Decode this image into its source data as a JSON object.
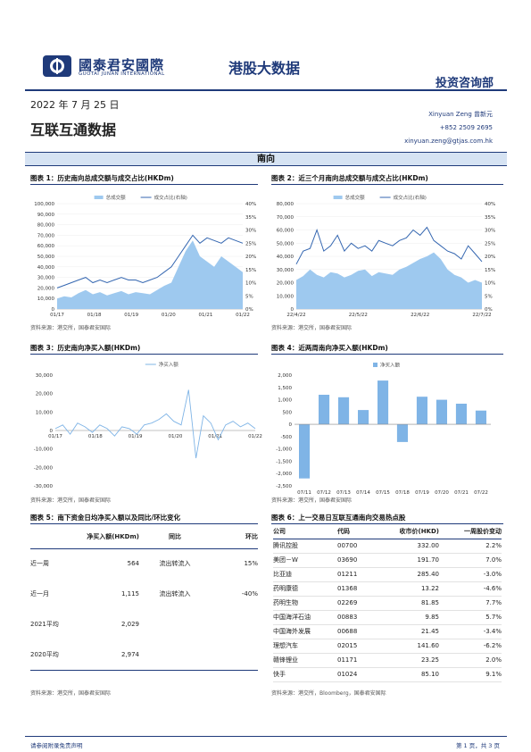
{
  "header": {
    "logo_cn": "國泰君安國際",
    "logo_en": "GUOTAI JUNAN INTERNATIONAL",
    "title": "港股大数据",
    "department": "投资咨询部",
    "brand_color": "#1f3a7a"
  },
  "report": {
    "date": "2022 年 7 月 25 日",
    "title": "互联互通数据"
  },
  "analyst": {
    "name": "Xinyuan Zeng  曾新元",
    "phone": "+852 2509 2695",
    "email": "xinyuan.zeng@gtjas.com.hk"
  },
  "section": "南向",
  "fig1": {
    "title": "图表 1：历史南向总成交额与成交占比(HKDm)",
    "source": "资料来源：港交所，国泰君安国际",
    "chart_data": {
      "type": "area",
      "legend": [
        "总成交额",
        "成交占比(右轴)"
      ],
      "x_ticks": [
        "01/17",
        "01/18",
        "01/19",
        "01/20",
        "01/21",
        "01/22"
      ],
      "y_left_ticks": [
        "0",
        "10,000",
        "20,000",
        "30,000",
        "40,000",
        "50,000",
        "60,000",
        "70,000",
        "80,000",
        "90,000",
        "100,000"
      ],
      "y_right_ticks": [
        "0%",
        "5%",
        "10%",
        "15%",
        "20%",
        "25%",
        "30%",
        "35%",
        "40%"
      ],
      "ylim_left": [
        0,
        100000
      ],
      "ylim_right": [
        0,
        40
      ],
      "series": [
        {
          "name": "总成交额",
          "axis": "left",
          "values": [
            10000,
            12000,
            11000,
            15000,
            18000,
            14000,
            16000,
            13000,
            15000,
            17000,
            14000,
            16000,
            15000,
            14000,
            18000,
            22000,
            25000,
            40000,
            55000,
            65000,
            50000,
            45000,
            40000,
            50000,
            45000,
            40000,
            35000
          ]
        },
        {
          "name": "成交占比(右轴)",
          "axis": "right",
          "values": [
            8,
            9,
            10,
            11,
            12,
            10,
            11,
            10,
            11,
            12,
            11,
            11,
            10,
            11,
            12,
            14,
            16,
            20,
            24,
            28,
            25,
            27,
            26,
            25,
            27,
            26,
            25
          ]
        }
      ]
    }
  },
  "fig2": {
    "title": "图表 2：近三个月南向总成交额与成交占比(HKDm)",
    "source": "资料来源：港交所，国泰君安国际",
    "chart_data": {
      "type": "area",
      "legend": [
        "总成交额",
        "成交占比(右轴)"
      ],
      "x_ticks": [
        "22/4/22",
        "22/5/22",
        "22/6/22",
        "22/7/22"
      ],
      "y_left_ticks": [
        "0",
        "10,000",
        "20,000",
        "30,000",
        "40,000",
        "50,000",
        "60,000",
        "70,000",
        "80,000"
      ],
      "y_right_ticks": [
        "0%",
        "5%",
        "10%",
        "15%",
        "20%",
        "25%",
        "30%",
        "35%",
        "40%"
      ],
      "ylim_left": [
        0,
        80000
      ],
      "ylim_right": [
        0,
        40
      ],
      "series": [
        {
          "name": "总成交额",
          "axis": "left",
          "values": [
            22000,
            25000,
            30000,
            26000,
            24000,
            28000,
            27000,
            24000,
            26000,
            29000,
            30000,
            25000,
            28000,
            27000,
            26000,
            30000,
            32000,
            35000,
            38000,
            40000,
            43000,
            38000,
            30000,
            26000,
            24000,
            20000,
            22000,
            20000
          ]
        },
        {
          "name": "成交占比(右轴)",
          "axis": "right",
          "values": [
            17,
            22,
            23,
            30,
            22,
            24,
            28,
            22,
            25,
            23,
            24,
            22,
            26,
            25,
            24,
            26,
            27,
            30,
            28,
            31,
            26,
            24,
            22,
            21,
            19,
            24,
            21,
            18
          ]
        }
      ]
    }
  },
  "fig3": {
    "title": "图表 3：历史南向净买入额(HKDm)",
    "source": "资料来源：港交所，国泰君安国际",
    "chart_data": {
      "type": "line",
      "legend": [
        "净买入额"
      ],
      "x_ticks": [
        "01/17",
        "01/18",
        "01/19",
        "01/20",
        "01/21",
        "01/22"
      ],
      "y_ticks": [
        "-30,000",
        "-20,000",
        "-10,000",
        "0",
        "10,000",
        "20,000",
        "30,000"
      ],
      "ylim": [
        -30000,
        30000
      ],
      "series": [
        {
          "name": "净买入额",
          "values": [
            1000,
            3000,
            -2000,
            4000,
            2000,
            -1000,
            3000,
            1000,
            -3000,
            2000,
            1000,
            -2000,
            3000,
            4000,
            6000,
            9000,
            5000,
            3000,
            22000,
            -15000,
            8000,
            4000,
            -5000,
            3000,
            5000,
            2000,
            4000,
            1000
          ]
        }
      ]
    }
  },
  "fig4": {
    "title": "图表 4：近两周南向净买入额(HKDm)",
    "source": "资料来源：港交所，国泰君安国际",
    "chart_data": {
      "type": "bar",
      "legend": [
        "净买入额"
      ],
      "categories": [
        "07/11",
        "07/12",
        "07/13",
        "07/14",
        "07/15",
        "07/18",
        "07/19",
        "07/20",
        "07/21",
        "07/22"
      ],
      "values": [
        -2200,
        1200,
        1100,
        580,
        1780,
        -720,
        1120,
        1000,
        840,
        560
      ],
      "y_ticks": [
        "-2,500",
        "-2,000",
        "-1,500",
        "-1,000",
        "-500",
        "0",
        "500",
        "1,000",
        "1,500",
        "2,000"
      ],
      "ylim": [
        -2500,
        2000
      ]
    }
  },
  "fig5": {
    "title": "图表 5：南下资金日均净买入额以及同比/环比变化",
    "source": "资料来源：港交所，国泰君安国际",
    "headers": [
      "",
      "净买入额(HKDm)",
      "同比",
      "环比"
    ],
    "rows": [
      [
        "近一周",
        "564",
        "流出转流入",
        "15%"
      ],
      [
        "近一月",
        "1,115",
        "流出转流入",
        "-40%"
      ],
      [
        "2021平均",
        "2,029",
        "",
        ""
      ],
      [
        "2020平均",
        "2,974",
        "",
        ""
      ]
    ]
  },
  "fig6": {
    "title": "图表 6：上一交易日互联互通南向交易热点股",
    "source": "资料来源：港交所，Bloomberg，国泰君安国际",
    "headers": [
      "公司",
      "代码",
      "收市价(HKD)",
      "一周股价变动"
    ],
    "rows": [
      [
        "腾讯控股",
        "00700",
        "332.00",
        "2.2%"
      ],
      [
        "美团－W",
        "03690",
        "191.70",
        "7.0%"
      ],
      [
        "比亚迪",
        "01211",
        "285.40",
        "-3.0%"
      ],
      [
        "药明康德",
        "01368",
        "13.22",
        "-4.6%"
      ],
      [
        "药明生物",
        "02269",
        "81.85",
        "7.7%"
      ],
      [
        "中国海洋石油",
        "00883",
        "9.85",
        "5.7%"
      ],
      [
        "中国海外发展",
        "00688",
        "21.45",
        "-3.4%"
      ],
      [
        "理想汽车",
        "02015",
        "141.60",
        "-6.2%"
      ],
      [
        "赣锋锂业",
        "01171",
        "23.25",
        "2.0%"
      ],
      [
        "快手",
        "01024",
        "85.10",
        "9.1%"
      ]
    ]
  },
  "footer": {
    "left": "请参阅附录免责声明",
    "right": "第 1 页，共 3 页"
  }
}
